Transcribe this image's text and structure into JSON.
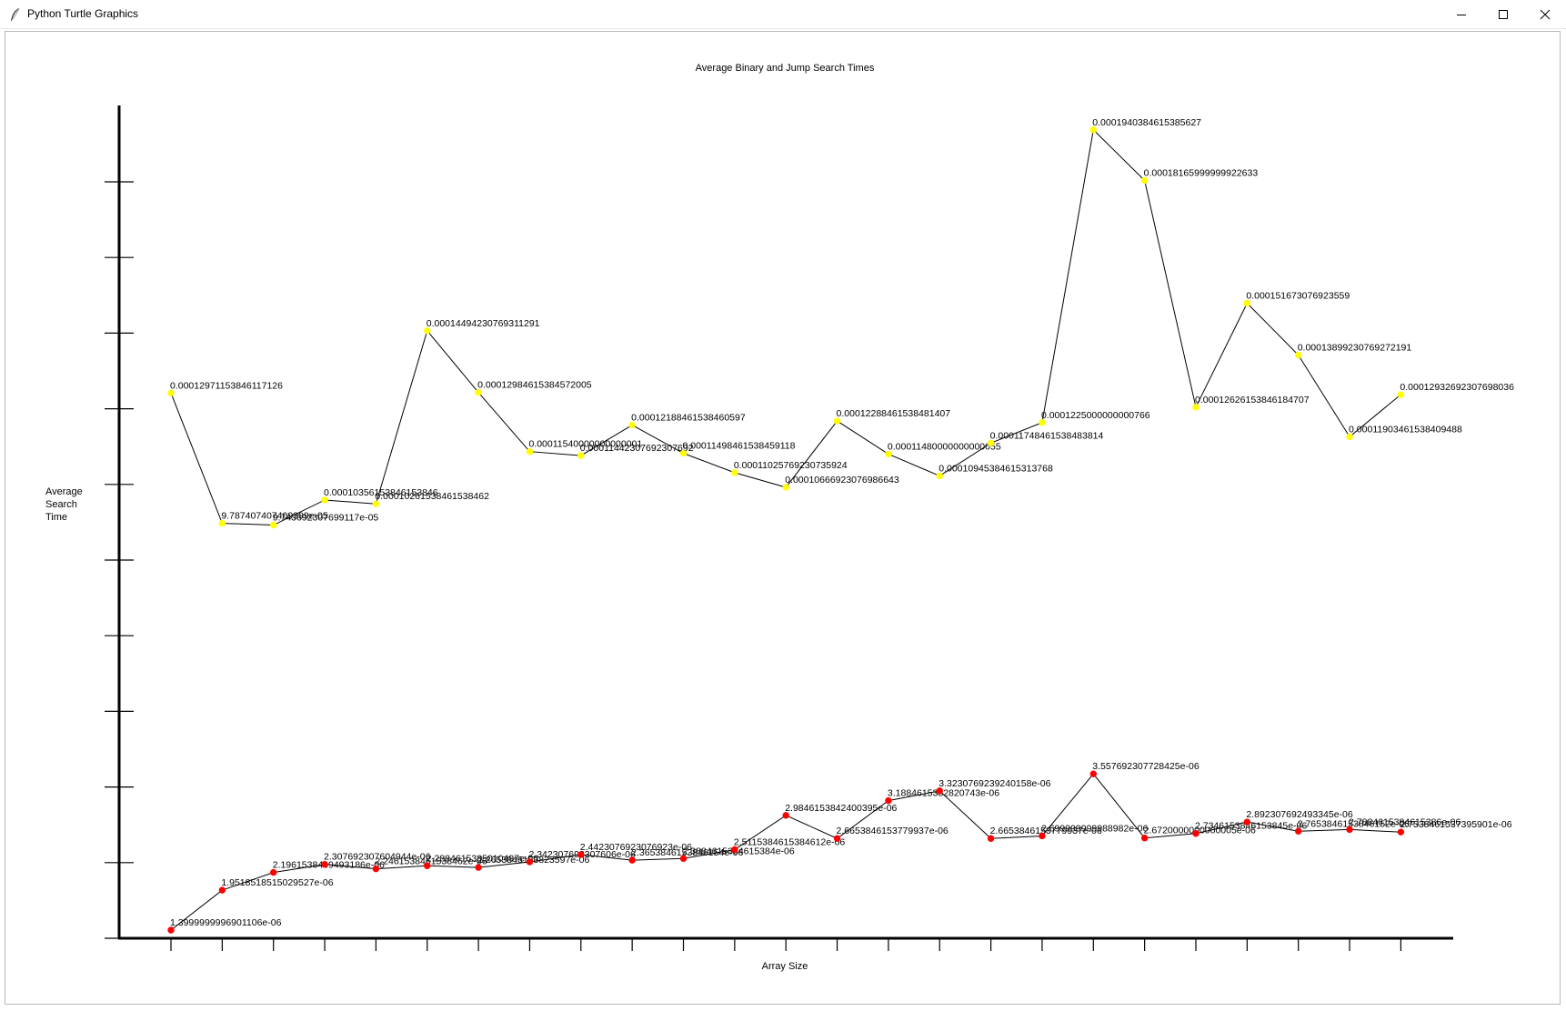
{
  "window": {
    "title": "Python Turtle Graphics"
  },
  "chart_data": {
    "type": "line",
    "title": "Average Binary and Jump Search Times",
    "xlabel": "Array Size",
    "ylabel": [
      "Average",
      "Search",
      "Time"
    ],
    "x_tick_count": 25,
    "y_tick_count": 11,
    "grid": false,
    "legend": "none",
    "series": [
      {
        "color": "#ffff00",
        "values": [
          {
            "label": "0.00012971153846117126",
            "value": 0.00012971153846117126
          },
          {
            "label": "9.787407407409399e-05",
            "value": 9.787407407409399e-05
          },
          {
            "label": "9.743692307699117e-05",
            "value": 9.743692307699117e-05
          },
          {
            "label": "0.00010356153846153846",
            "value": 0.00010356153846153847
          },
          {
            "label": "0.00010261538461538462",
            "value": 0.00010261538461538462
          },
          {
            "label": "0.00014494230769311291",
            "value": 0.00014494230769311291
          },
          {
            "label": "0.00012984615384572005",
            "value": 0.00012984615384572005
          },
          {
            "label": "0.00011540000000000001",
            "value": 0.0001154
          },
          {
            "label": "0.00011442307692307692",
            "value": 0.00011442307692307692
          },
          {
            "label": "0.00012188461538460597",
            "value": 0.00012188461538460597
          },
          {
            "label": "0.00011498461538459118",
            "value": 0.00011498461538459118
          },
          {
            "label": "0.00011025769230735924",
            "value": 0.00011025769230735924
          },
          {
            "label": "0.00010666923076986643",
            "value": 0.00010666923076986642
          },
          {
            "label": "0.00012288461538481407",
            "value": 0.00012288461538481407
          },
          {
            "label": "0.00011480000000000055",
            "value": 0.00011480000000000055
          },
          {
            "label": "0.00010945384615313768",
            "value": 0.00010945384615313768
          },
          {
            "label": "0.00011748461538483814",
            "value": 0.00011748461538483814
          },
          {
            "label": "0.0001225000000000766",
            "value": 0.0001225000000000766
          },
          {
            "label": "0.0001940384615385627",
            "value": 0.0001940384615385627
          },
          {
            "label": "0.00018165999999922633",
            "value": 0.00018165999999922633
          },
          {
            "label": "0.00012626153846184707",
            "value": 0.00012626153846184707
          },
          {
            "label": "0.000151673076923559",
            "value": 0.000151673076923559
          },
          {
            "label": "0.00013899230769272191",
            "value": 0.00013899230769272191
          },
          {
            "label": "0.00011903461538409488",
            "value": 0.00011903461538409488
          },
          {
            "label": "0.00012932692307698036",
            "value": 0.00012932692307698036
          }
        ]
      },
      {
        "color": "#ff0000",
        "values": [
          {
            "label": "1.3999999996901106e-06",
            "value": 1.3999999996901106e-06
          },
          {
            "label": "1.9518518515029527e-06",
            "value": 1.9518518515029527e-06
          },
          {
            "label": "2.1961538469493186e-06",
            "value": 2.1961538469493184e-06
          },
          {
            "label": "2.307692307604944e-06",
            "value": 2.307692307604944e-06
          },
          {
            "label": "2.2461538461538462e-06",
            "value": 2.246153846153846e-06
          },
          {
            "label": "2.2884615385010497e-06",
            "value": 2.28846153850105e-06
          },
          {
            "label": "2.2653846153823597e-06",
            "value": 2.2653846153823597e-06
          },
          {
            "label": "2.342307692307606e-06",
            "value": 2.342307692307606e-06
          },
          {
            "label": "2.4423076923076923e-06",
            "value": 2.442307692307692e-06
          },
          {
            "label": "2.3653846153846154e-06",
            "value": 2.3653846153846152e-06
          },
          {
            "label": "2.3884615384615384e-06",
            "value": 2.388461538461538e-06
          },
          {
            "label": "2.5115384615384612e-06",
            "value": 2.511538461538461e-06
          },
          {
            "label": "2.9846153842400395e-06",
            "value": 2.9846153842400395e-06
          },
          {
            "label": "2.6653846153779937e-06",
            "value": 2.6653846153779937e-06
          },
          {
            "label": "3.1884615382820743e-06",
            "value": 3.1884615382820743e-06
          },
          {
            "label": "3.3230769239240158e-06",
            "value": 3.3230769239240158e-06
          },
          {
            "label": "2.6653846153779937e-06",
            "value": 2.6653846153779937e-06
          },
          {
            "label": "2.699999999988982e-06",
            "value": 2.699999999988982e-06
          },
          {
            "label": "3.557692307728425e-06",
            "value": 3.557692307728425e-06
          },
          {
            "label": "2.6720000000000005e-06",
            "value": 2.6720000000000004e-06
          },
          {
            "label": "2.7346153846153845e-06",
            "value": 2.7346153846153846e-06
          },
          {
            "label": "2.892307692493345e-06",
            "value": 2.892307692493345e-06
          },
          {
            "label": "2.7653846153846152e-06",
            "value": 2.7653846153846152e-06
          },
          {
            "label": "2.7884615384615386e-06",
            "value": 2.7884615384615386e-06
          },
          {
            "label": "2.7538461537395901e-06",
            "value": 2.75384615373959e-06
          }
        ]
      }
    ]
  }
}
